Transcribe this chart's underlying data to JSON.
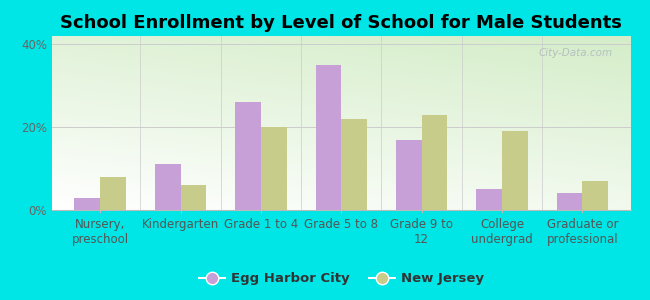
{
  "title": "School Enrollment by Level of School for Male Students",
  "categories": [
    "Nursery,\npreschool",
    "Kindergarten",
    "Grade 1 to 4",
    "Grade 5 to 8",
    "Grade 9 to\n12",
    "College\nundergrad",
    "Graduate or\nprofessional"
  ],
  "egg_harbor_city": [
    3,
    11,
    26,
    35,
    17,
    5,
    4
  ],
  "new_jersey": [
    8,
    6,
    20,
    22,
    23,
    19,
    7
  ],
  "bar_color_ehc": "#c8a0d8",
  "bar_color_nj": "#c8cc8a",
  "background_color": "#00e5e5",
  "ylim": [
    0,
    42
  ],
  "yticks": [
    0,
    20,
    40
  ],
  "ytick_labels": [
    "0%",
    "20%",
    "40%"
  ],
  "legend_label_ehc": "Egg Harbor City",
  "legend_label_nj": "New Jersey",
  "title_fontsize": 13,
  "tick_fontsize": 8.5,
  "legend_fontsize": 9.5,
  "watermark": "City-Data.com",
  "bar_width": 0.32
}
